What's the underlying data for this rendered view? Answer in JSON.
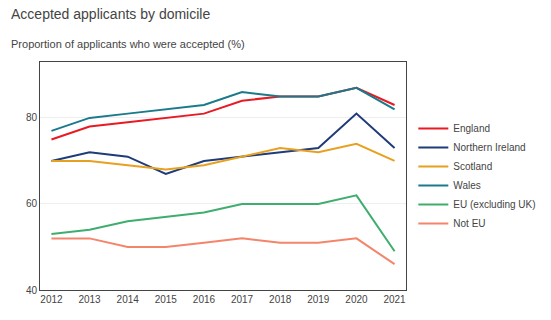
{
  "chart_data": {
    "type": "line",
    "title": "Accepted applicants by domicile",
    "subtitle": "Proportion of applicants who were accepted (%)",
    "x": [
      2012,
      2013,
      2014,
      2015,
      2016,
      2017,
      2018,
      2019,
      2020,
      2021
    ],
    "series": [
      {
        "name": "England",
        "color": "#e81a24",
        "values": [
          75,
          78,
          79,
          80,
          81,
          84,
          85,
          85,
          87,
          83
        ]
      },
      {
        "name": "Northern Ireland",
        "color": "#1f3b7a",
        "values": [
          70,
          72,
          71,
          67,
          70,
          71,
          72,
          73,
          81,
          73
        ]
      },
      {
        "name": "Scotland",
        "color": "#e8a020",
        "values": [
          70,
          70,
          69,
          68,
          69,
          71,
          73,
          72,
          74,
          70
        ]
      },
      {
        "name": "Wales",
        "color": "#1a7a8a",
        "values": [
          77,
          80,
          81,
          82,
          83,
          86,
          85,
          85,
          87,
          82
        ]
      },
      {
        "name": "EU (excluding UK)",
        "color": "#3fad6e",
        "values": [
          53,
          54,
          56,
          57,
          58,
          60,
          60,
          60,
          62,
          49
        ]
      },
      {
        "name": "Not EU",
        "color": "#f4856a",
        "values": [
          52,
          52,
          50,
          50,
          51,
          52,
          51,
          51,
          52,
          46
        ]
      }
    ],
    "xlim": [
      2011.7,
      2021.3
    ],
    "xticks": [
      2012,
      2013,
      2014,
      2015,
      2016,
      2017,
      2018,
      2019,
      2020,
      2021
    ],
    "ylim": [
      40,
      93
    ],
    "yticks": [
      40,
      60,
      80
    ],
    "grid": "y",
    "legend": "right"
  }
}
